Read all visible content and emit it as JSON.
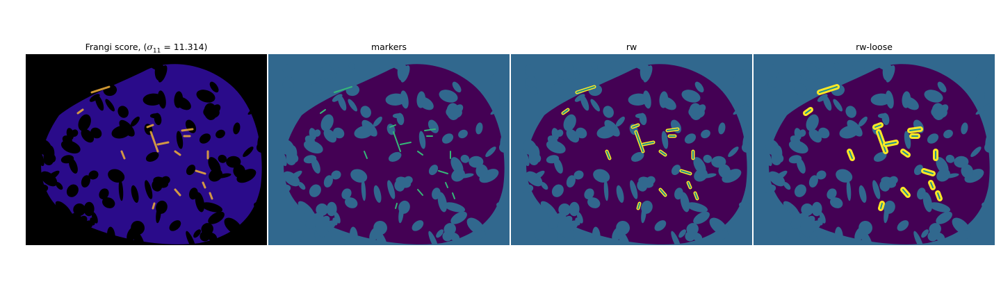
{
  "figure": {
    "panels": [
      {
        "id": "frangi",
        "title_prefix": "Frangi score, (",
        "sigma_symbol": "σ",
        "sigma_subscript": "11",
        "sigma_value": " = 11.314)"
      },
      {
        "id": "markers",
        "title": "markers"
      },
      {
        "id": "rw",
        "title": "rw"
      },
      {
        "id": "rw-loose",
        "title": "rw-loose"
      }
    ],
    "colors": {
      "frangi_background": "#000000",
      "frangi_tissue": "#2a0b8a",
      "frangi_high": "#f0b03a",
      "label_background": "#31688e",
      "label_tissue": "#440154",
      "marker": "#35b779",
      "segment_inner": "#21918c",
      "segment_fill": "#fde725"
    }
  }
}
